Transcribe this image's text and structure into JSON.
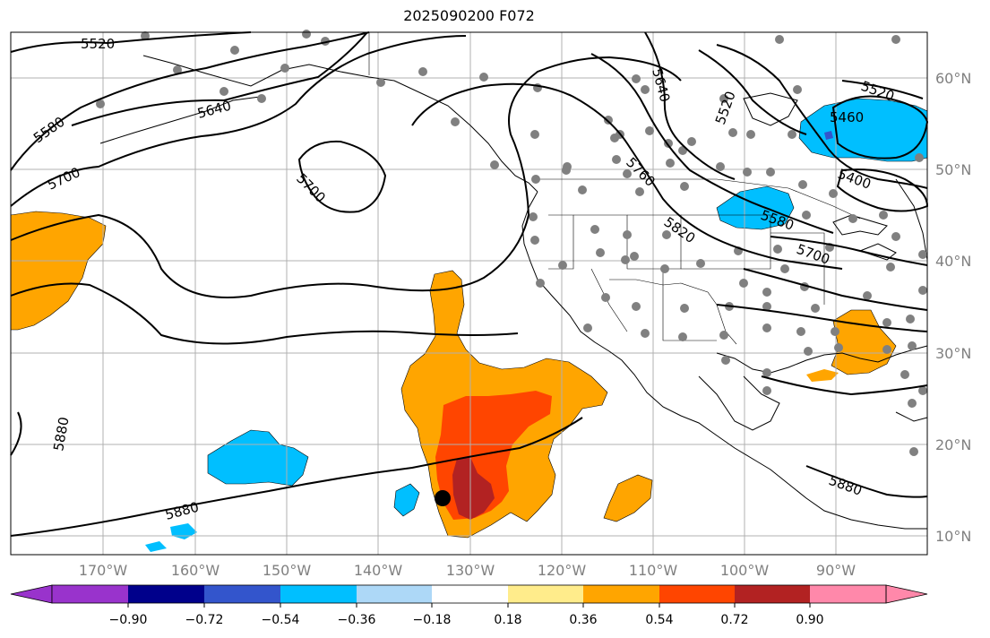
{
  "title": "2025090200 F072",
  "map": {
    "lon_labels": [
      "170°W",
      "160°W",
      "150°W",
      "140°W",
      "130°W",
      "120°W",
      "110°W",
      "100°W",
      "90°W"
    ],
    "lat_labels": [
      "60°N",
      "50°N",
      "40°N",
      "30°N",
      "20°N",
      "10°N"
    ],
    "contour_labels": [
      "5520",
      "5640",
      "5580",
      "5700",
      "5700",
      "5880",
      "5880",
      "5640",
      "5520",
      "5760",
      "5820",
      "5580",
      "5700",
      "5460",
      "5400",
      "5520",
      "5880"
    ],
    "storm_marker": {
      "lon": -133.5,
      "lat": 14.2
    }
  },
  "colorbar": {
    "ticks": [
      "−0.90",
      "−0.72",
      "−0.54",
      "−0.36",
      "−0.18",
      "0.18",
      "0.36",
      "0.54",
      "0.72",
      "0.90"
    ],
    "colors": [
      "#9933cc",
      "#00008b",
      "#3355cc",
      "#00bfff",
      "#add8f7",
      "#ffffff",
      "#ffec8b",
      "#ffa500",
      "#ff4500",
      "#b22222",
      "#ff88aa"
    ]
  }
}
